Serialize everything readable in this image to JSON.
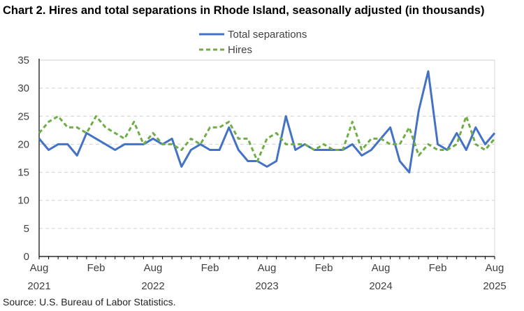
{
  "title": "Chart 2. Hires and total separations in Rhode Island, seasonally adjusted (in thousands)",
  "source": "Source: U.S. Bureau of Labor Statistics.",
  "chart_data": {
    "type": "line",
    "title": "Chart 2. Hires and total separations in Rhode Island, seasonally adjusted (in thousands)",
    "xlabel": "",
    "ylabel": "",
    "ylim": [
      0,
      35
    ],
    "yticks": [
      0,
      5,
      10,
      15,
      20,
      25,
      30,
      35
    ],
    "grid": true,
    "legend": "top-center",
    "x_start": "Aug 2021",
    "x_end": "Aug 2025",
    "xtick_labels": [
      {
        "month": "Aug",
        "year": "2021",
        "index": 0
      },
      {
        "month": "Feb",
        "year": "",
        "index": 6
      },
      {
        "month": "Aug",
        "year": "2022",
        "index": 12
      },
      {
        "month": "Feb",
        "year": "",
        "index": 18
      },
      {
        "month": "Aug",
        "year": "2023",
        "index": 24
      },
      {
        "month": "Feb",
        "year": "",
        "index": 30
      },
      {
        "month": "Aug",
        "year": "2024",
        "index": 36
      },
      {
        "month": "Feb",
        "year": "",
        "index": 42
      },
      {
        "month": "Aug",
        "year": "2025",
        "index": 48
      }
    ],
    "series": [
      {
        "name": "Total separations",
        "color": "#4472C4",
        "style": "solid",
        "values": [
          21,
          19,
          20,
          20,
          18,
          22,
          21,
          20,
          19,
          20,
          20,
          20,
          21,
          20,
          21,
          16,
          19,
          20,
          19,
          19,
          23,
          19,
          17,
          17,
          16,
          17,
          25,
          19,
          20,
          19,
          19,
          19,
          19,
          20,
          18,
          19,
          21,
          23,
          17,
          15,
          26,
          33,
          20,
          19,
          22,
          19,
          23,
          20,
          22
        ]
      },
      {
        "name": "Hires",
        "color": "#70AD47",
        "style": "dashed",
        "values": [
          22,
          24,
          25,
          23,
          23,
          22,
          25,
          23,
          22,
          21,
          24,
          20,
          22,
          20,
          20,
          19,
          21,
          20,
          23,
          23,
          24,
          21,
          21,
          17,
          21,
          22,
          20,
          20,
          20,
          19,
          20,
          19,
          19,
          24,
          19,
          21,
          21,
          20,
          20,
          23,
          18,
          20,
          19,
          19,
          20,
          25,
          20,
          19,
          21
        ]
      }
    ]
  }
}
